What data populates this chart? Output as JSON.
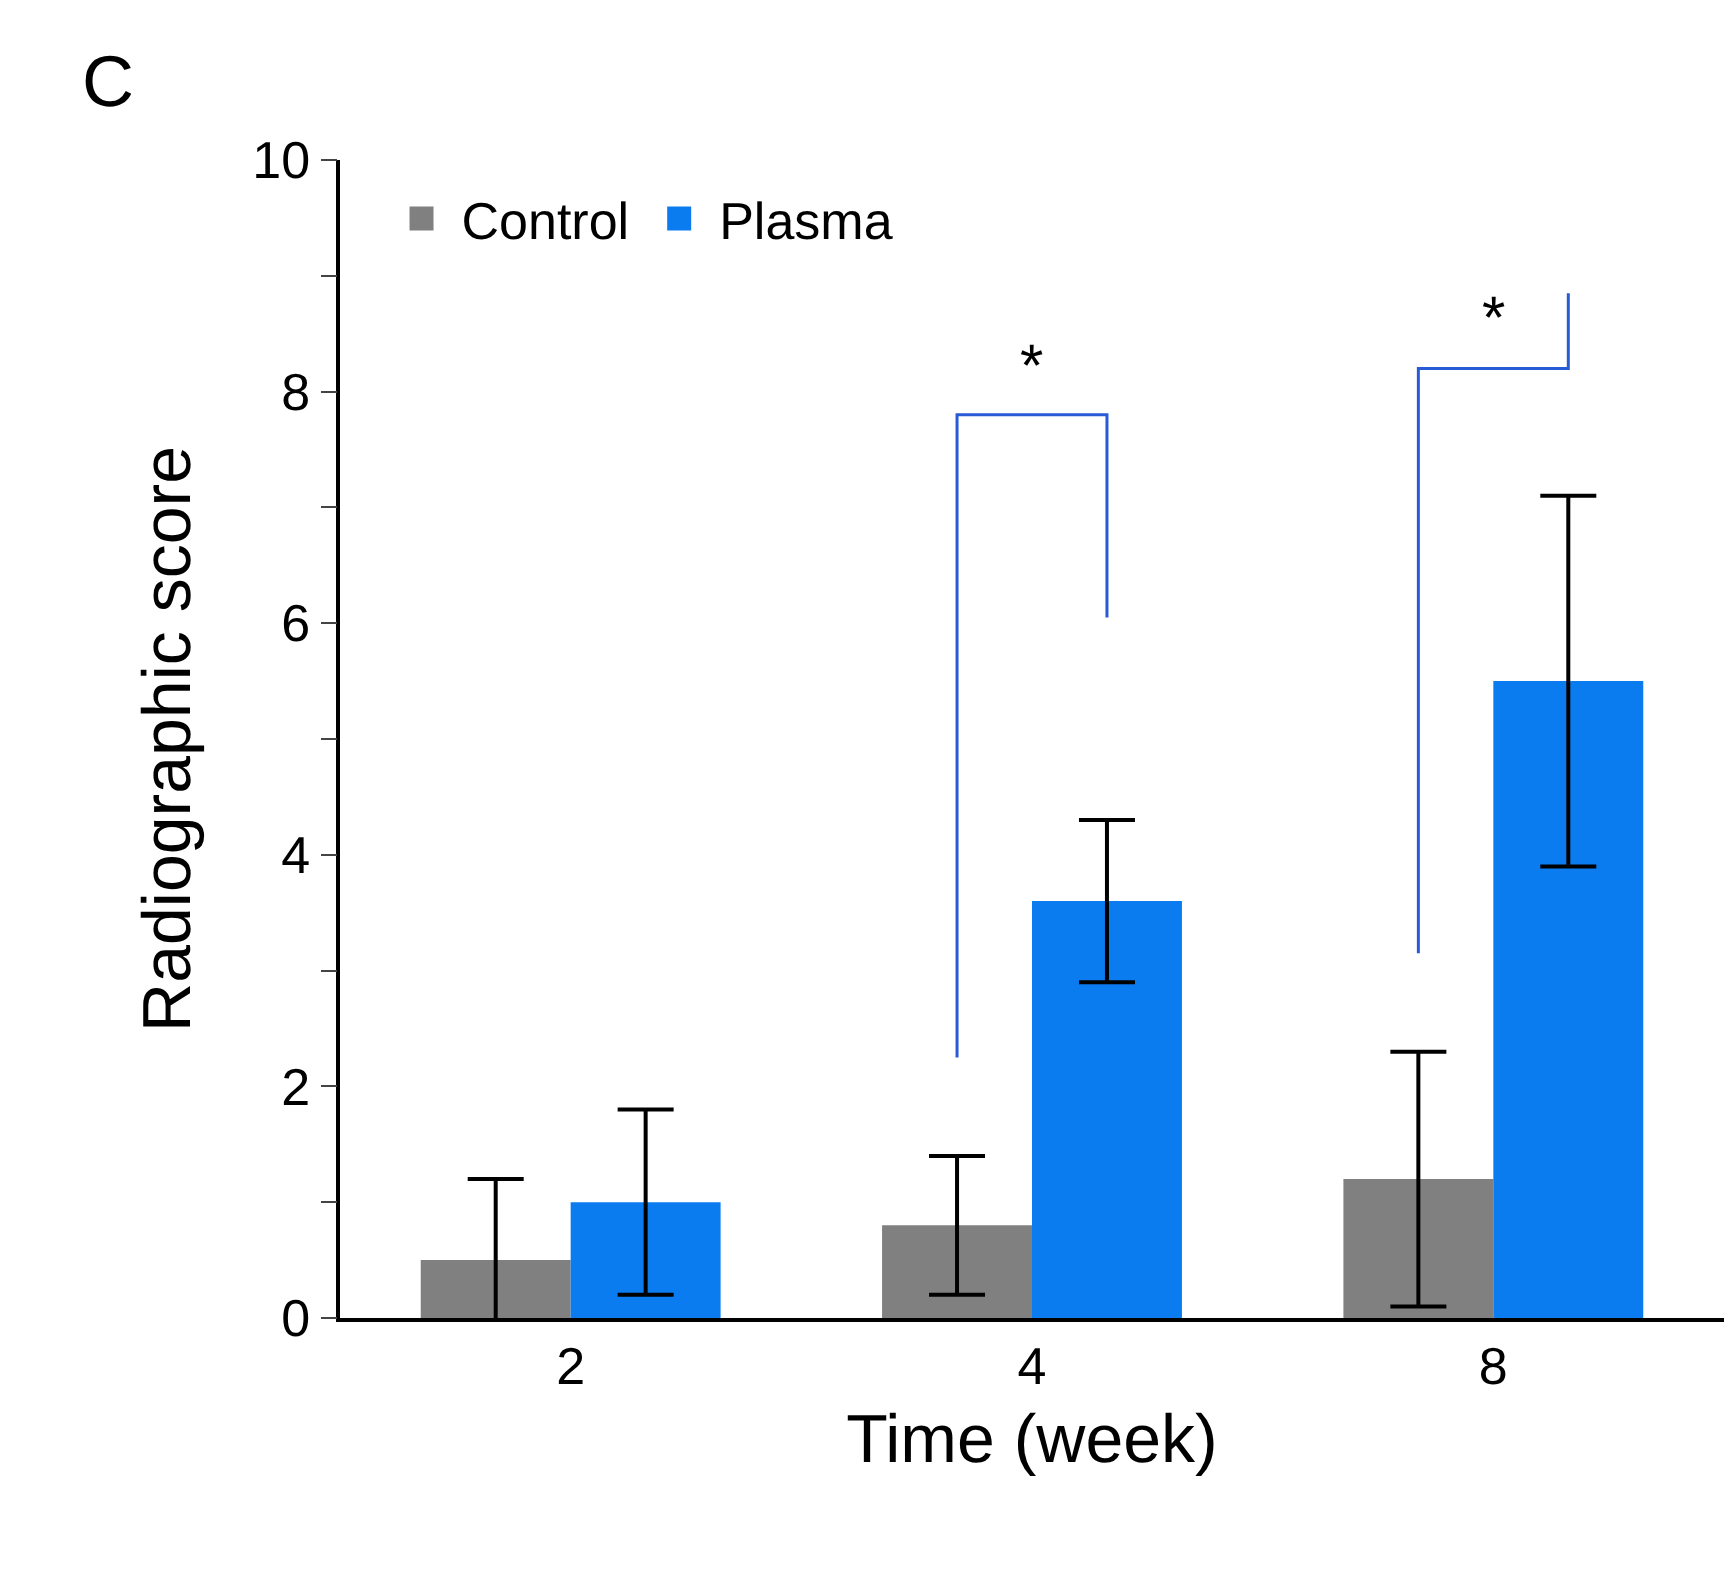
{
  "chart_data": {
    "type": "bar",
    "xlabel": "Time (week)",
    "ylabel": "Radiographic score",
    "categories": [
      "2",
      "4",
      "8"
    ],
    "series": [
      {
        "name": "Control",
        "color": "#808080",
        "values": [
          0.5,
          0.8,
          1.2
        ],
        "errors": [
          0.7,
          0.6,
          1.1
        ]
      },
      {
        "name": "Plasma",
        "color": "#0a7cf0",
        "values": [
          1.0,
          3.6,
          5.5
        ],
        "errors": [
          0.8,
          0.7,
          1.6
        ]
      }
    ],
    "ylim": [
      0,
      10
    ],
    "yticks": [
      0,
      {
        "value": 1,
        "label": null
      },
      2,
      {
        "value": 3,
        "label": null
      },
      4,
      {
        "value": 5,
        "label": null
      },
      6,
      {
        "value": 7,
        "label": null
      },
      8,
      {
        "value": 9,
        "label": null
      },
      10
    ],
    "grid": false,
    "legend": "top left",
    "annotations": [
      "C",
      "*",
      "*"
    ]
  }
}
